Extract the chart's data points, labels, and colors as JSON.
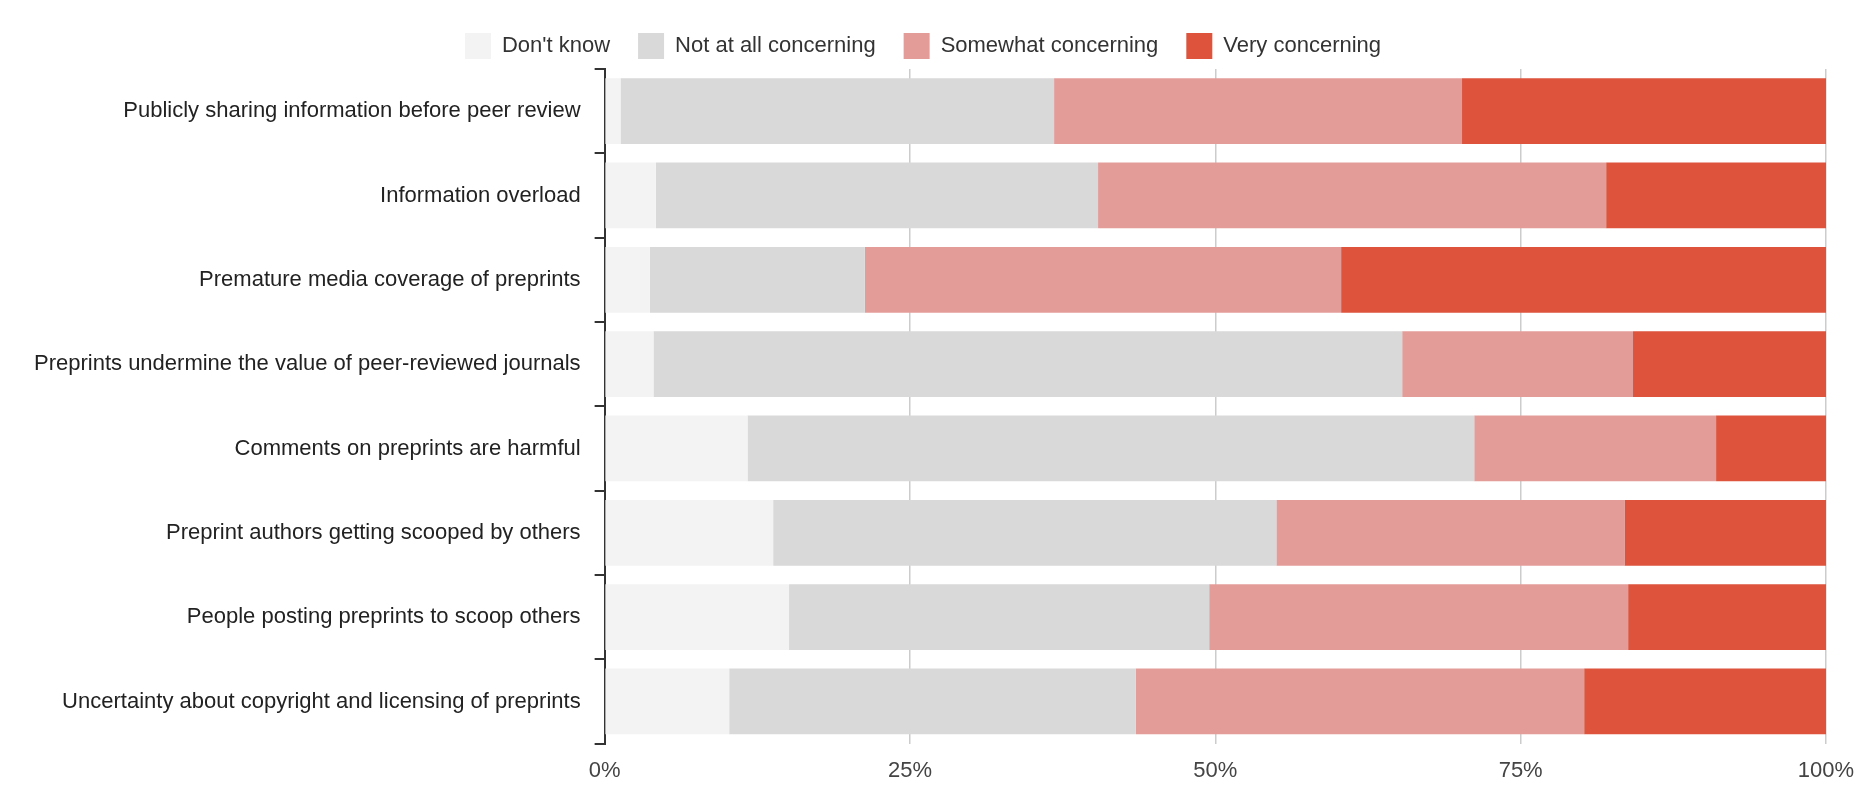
{
  "chart_data": {
    "type": "bar",
    "orientation": "horizontal",
    "stacked": true,
    "categories": [
      "Publicly sharing information before peer review",
      "Information overload",
      "Premature media coverage of preprints",
      "Preprints undermine the value of peer-reviewed journals",
      "Comments on preprints are harmful",
      "Preprint authors getting scooped by others",
      "People posting preprints to scoop others",
      "Uncertainty about copyright and licensing of preprints"
    ],
    "series": [
      {
        "name": "Don't know",
        "color": "#f3f3f3",
        "values": [
          1.3,
          4.2,
          3.7,
          4.0,
          11.7,
          13.8,
          15.1,
          10.2
        ]
      },
      {
        "name": "Not at all concerning",
        "color": "#d9d9d9",
        "values": [
          35.5,
          36.2,
          17.6,
          61.3,
          59.5,
          41.2,
          34.4,
          33.3
        ]
      },
      {
        "name": "Somewhat concerning",
        "color": "#e39c98",
        "values": [
          33.4,
          41.6,
          39.0,
          18.9,
          19.8,
          28.5,
          34.3,
          36.7
        ]
      },
      {
        "name": "Very concerning",
        "color": "#dd533c",
        "values": [
          29.8,
          18.0,
          39.7,
          15.8,
          9.0,
          16.5,
          16.2,
          19.8
        ]
      }
    ],
    "xlim": [
      0,
      100
    ],
    "xticks": [
      {
        "value": 0,
        "label": "0%"
      },
      {
        "value": 25,
        "label": "25%"
      },
      {
        "value": 50,
        "label": "50%"
      },
      {
        "value": 75,
        "label": "75%"
      },
      {
        "value": 100,
        "label": "100%"
      }
    ],
    "grid": "x",
    "legend": "top"
  }
}
